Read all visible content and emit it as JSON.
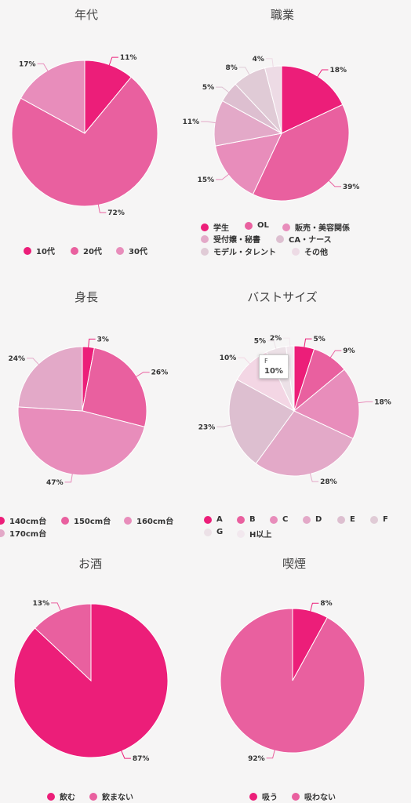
{
  "chart_data": [
    {
      "type": "pie",
      "title": "年代",
      "slices": [
        {
          "label": "10代",
          "value": 11,
          "color": "#ec1e79"
        },
        {
          "label": "20代",
          "value": 72,
          "color": "#e9609f"
        },
        {
          "label": "30代",
          "value": 17,
          "color": "#e88dbb"
        }
      ]
    },
    {
      "type": "pie",
      "title": "職業",
      "slices": [
        {
          "label": "学生",
          "value": 18,
          "color": "#ec1e79"
        },
        {
          "label": "OL",
          "value": 39,
          "color": "#e9609f"
        },
        {
          "label": "販売・美容関係",
          "value": 15,
          "color": "#e88dbb"
        },
        {
          "label": "受付嬢・秘書",
          "value": 11,
          "color": "#e3a9c8"
        },
        {
          "label": "CA・ナース",
          "value": 5,
          "color": "#ddbfd0"
        },
        {
          "label": "モデル・タレント",
          "value": 8,
          "color": "#e0cbd6"
        },
        {
          "label": "その他",
          "value": 4,
          "color": "#eddbe5"
        }
      ]
    },
    {
      "type": "pie",
      "title": "身長",
      "slices": [
        {
          "label": "140cm台",
          "value": 3,
          "color": "#ec1e79"
        },
        {
          "label": "150cm台",
          "value": 26,
          "color": "#e9609f"
        },
        {
          "label": "160cm台",
          "value": 47,
          "color": "#e88dbb"
        },
        {
          "label": "170cm台",
          "value": 24,
          "color": "#e3a9c8"
        }
      ]
    },
    {
      "type": "pie",
      "title": "バストサイズ",
      "slices": [
        {
          "label": "A",
          "value": 5,
          "color": "#ec1e79"
        },
        {
          "label": "B",
          "value": 9,
          "color": "#e9609f"
        },
        {
          "label": "C",
          "value": 18,
          "color": "#e88dbb"
        },
        {
          "label": "D",
          "value": 28,
          "color": "#e3a9c8"
        },
        {
          "label": "E",
          "value": 23,
          "color": "#ddbfd0"
        },
        {
          "label": "F",
          "value": 10,
          "color": "#f3d6e4"
        },
        {
          "label": "G",
          "value": 5,
          "color": "#ece1e7"
        },
        {
          "label": "H以上",
          "value": 2,
          "color": "#f2e8ee"
        }
      ],
      "tooltip": {
        "label": "F",
        "value": "10%"
      }
    },
    {
      "type": "pie",
      "title": "お酒",
      "slices": [
        {
          "label": "飲む",
          "value": 87,
          "color": "#ec1e79"
        },
        {
          "label": "飲まない",
          "value": 13,
          "color": "#e9609f"
        }
      ]
    },
    {
      "type": "pie",
      "title": "喫煙",
      "slices": [
        {
          "label": "吸う",
          "value": 8,
          "color": "#ec1e79"
        },
        {
          "label": "吸わない",
          "value": 92,
          "color": "#e9609f"
        }
      ]
    }
  ]
}
